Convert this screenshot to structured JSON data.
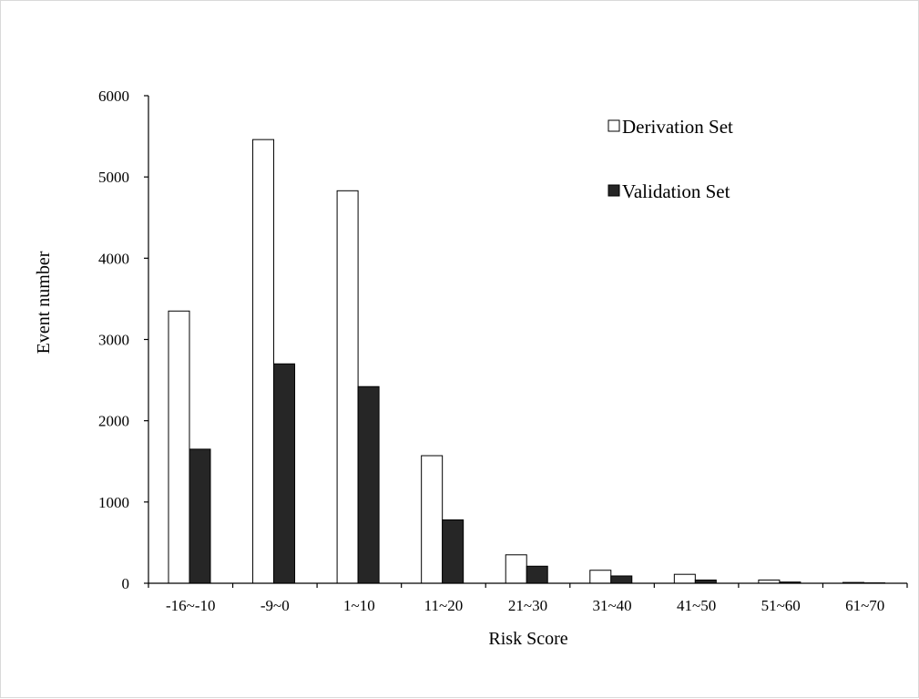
{
  "chart_data": {
    "type": "bar",
    "title": "",
    "xlabel": "Risk Score",
    "ylabel": "Event number",
    "ylim": [
      0,
      6000
    ],
    "yticks": [
      0,
      1000,
      2000,
      3000,
      4000,
      5000,
      6000
    ],
    "grid": false,
    "legend_position": "top-right",
    "categories": [
      "-16~-10",
      "-9~0",
      "1~10",
      "11~20",
      "21~30",
      "31~40",
      "41~50",
      "51~60",
      "61~70"
    ],
    "series": [
      {
        "name": "Derivation Set",
        "fill": "#ffffff",
        "stroke": "#000000",
        "values": [
          3350,
          5460,
          4830,
          1570,
          350,
          160,
          110,
          40,
          10
        ]
      },
      {
        "name": "Validation Set",
        "fill": "#262626",
        "stroke": "#000000",
        "values": [
          1650,
          2700,
          2420,
          780,
          210,
          90,
          40,
          15,
          5
        ]
      }
    ]
  }
}
